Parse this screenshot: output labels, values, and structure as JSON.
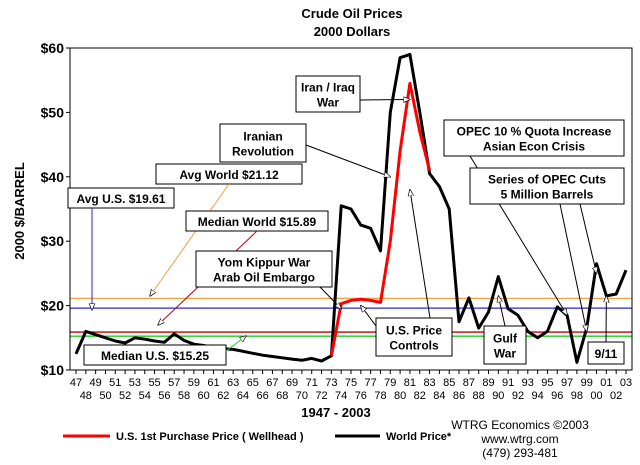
{
  "chart_data": {
    "type": "line",
    "title": "Crude Oil Prices",
    "subtitle": "2000 Dollars",
    "ylabel": "2000 $/BARREL",
    "xlabel": "1947 - 2003",
    "ylim": [
      10,
      60
    ],
    "y_ticks": [
      "$10",
      "$20",
      "$30",
      "$40",
      "$50",
      "$60"
    ],
    "x_ticks_top": [
      "47",
      "49",
      "51",
      "53",
      "55",
      "57",
      "59",
      "61",
      "63",
      "65",
      "67",
      "69",
      "71",
      "73",
      "75",
      "77",
      "79",
      "81",
      "83",
      "85",
      "87",
      "89",
      "91",
      "93",
      "95",
      "97",
      "99",
      "01",
      "03"
    ],
    "x_ticks_bottom": [
      "48",
      "50",
      "52",
      "54",
      "56",
      "58",
      "60",
      "62",
      "64",
      "66",
      "68",
      "70",
      "72",
      "74",
      "76",
      "78",
      "80",
      "82",
      "84",
      "86",
      "88",
      "90",
      "92",
      "94",
      "96",
      "98",
      "00",
      "02"
    ],
    "grid": false,
    "legend_position": "bottom",
    "series": [
      {
        "name": "World Price*",
        "color": "#000000",
        "points": [
          [
            1947,
            12.5
          ],
          [
            1948,
            16
          ],
          [
            1949,
            15.5
          ],
          [
            1950,
            15
          ],
          [
            1951,
            14.5
          ],
          [
            1952,
            14.2
          ],
          [
            1953,
            15
          ],
          [
            1954,
            14.8
          ],
          [
            1955,
            14.5
          ],
          [
            1956,
            14.3
          ],
          [
            1957,
            15.6
          ],
          [
            1958,
            14.6
          ],
          [
            1959,
            14
          ],
          [
            1960,
            13.8
          ],
          [
            1961,
            13.5
          ],
          [
            1962,
            13.3
          ],
          [
            1963,
            13.2
          ],
          [
            1964,
            12.9
          ],
          [
            1965,
            12.6
          ],
          [
            1966,
            12.3
          ],
          [
            1967,
            12.1
          ],
          [
            1968,
            11.9
          ],
          [
            1969,
            11.7
          ],
          [
            1970,
            11.5
          ],
          [
            1971,
            11.8
          ],
          [
            1972,
            11.4
          ],
          [
            1973,
            12.2
          ],
          [
            1974,
            35.5
          ],
          [
            1975,
            35
          ],
          [
            1976,
            32.5
          ],
          [
            1977,
            32
          ],
          [
            1978,
            28.5
          ],
          [
            1979,
            50
          ],
          [
            1980,
            58.5
          ],
          [
            1981,
            59
          ],
          [
            1982,
            50
          ],
          [
            1983,
            40.5
          ],
          [
            1984,
            38.5
          ],
          [
            1985,
            35
          ],
          [
            1986,
            17.5
          ],
          [
            1987,
            21.2
          ],
          [
            1988,
            16.5
          ],
          [
            1989,
            19
          ],
          [
            1990,
            24.5
          ],
          [
            1991,
            19.5
          ],
          [
            1992,
            18.5
          ],
          [
            1993,
            16
          ],
          [
            1994,
            15
          ],
          [
            1995,
            16
          ],
          [
            1996,
            19.8
          ],
          [
            1997,
            18.5
          ],
          [
            1998,
            11.2
          ],
          [
            1999,
            16.5
          ],
          [
            2000,
            26.5
          ],
          [
            2001,
            21.5
          ],
          [
            2002,
            21.8
          ],
          [
            2003,
            25.5
          ]
        ]
      },
      {
        "name": "U.S. 1st Purchase Price ( Wellhead )",
        "color": "#ff0000",
        "points": [
          [
            1973,
            12.2
          ],
          [
            1974,
            20.3
          ],
          [
            1975,
            20.8
          ],
          [
            1976,
            21
          ],
          [
            1977,
            20.8
          ],
          [
            1978,
            20.5
          ],
          [
            1979,
            30
          ],
          [
            1980,
            44
          ],
          [
            1981,
            54.5
          ],
          [
            1982,
            47
          ],
          [
            1983,
            41
          ]
        ]
      }
    ],
    "reference_lines": [
      {
        "label": "Avg World $21.12",
        "value": 21.12,
        "color": "#f2a040"
      },
      {
        "label": "Avg U.S. $19.61",
        "value": 19.61,
        "color": "#2a2ad0"
      },
      {
        "label": "Median World  $15.89",
        "value": 15.89,
        "color": "#c00000"
      },
      {
        "label": "Median U.S.  $15.25",
        "value": 15.25,
        "color": "#22cc22"
      }
    ],
    "annotations": [
      {
        "id": "iran-iraq",
        "lines": [
          "Iran / Iraq",
          "War"
        ],
        "arrow_to": [
          1981,
          52
        ]
      },
      {
        "id": "iranian-revolution",
        "lines": [
          "Iranian",
          "Revolution"
        ],
        "arrow_to": [
          1979,
          40
        ]
      },
      {
        "id": "yom-kippur",
        "lines": [
          "Yom Kippur War",
          "Arab Oil Embargo"
        ],
        "arrow_to": [
          1974,
          19.5
        ]
      },
      {
        "id": "us-price-controls",
        "lines": [
          "U.S. Price",
          "Controls"
        ],
        "arrow_to": [
          1976,
          20
        ]
      },
      {
        "id": "gulf-war",
        "lines": [
          "Gulf",
          "War"
        ],
        "arrow_to": [
          1990,
          21.5
        ]
      },
      {
        "id": "opec-quota",
        "lines": [
          "OPEC 10 % Quota Increase",
          "Asian Econ Crisis"
        ],
        "arrow_to": [
          1997,
          18.5
        ]
      },
      {
        "id": "opec-cuts",
        "lines": [
          "Series of OPEC Cuts",
          "5 Million Barrels"
        ],
        "arrow_to": [
          1999,
          16
        ]
      },
      {
        "id": "nine-eleven",
        "lines": [
          "9/11"
        ],
        "arrow_to": [
          2001,
          21.5
        ]
      }
    ]
  },
  "credits": {
    "line1": "WTRG Economics  ©2003",
    "line2": "www.wtrg.com",
    "line3": "(479) 293-481"
  }
}
